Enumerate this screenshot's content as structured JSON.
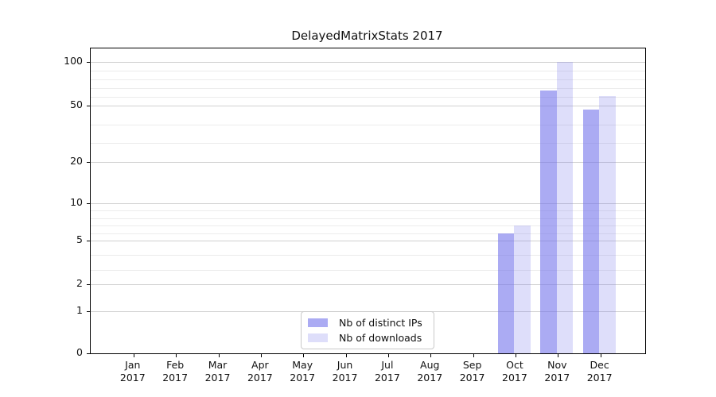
{
  "figure": {
    "background": "#ffffff",
    "spine_color": "#000000",
    "text_color": "#111111"
  },
  "chart_data": {
    "type": "bar",
    "title": "DelayedMatrixStats 2017",
    "xlabel": "",
    "ylabel": "",
    "categories": [
      "Jan",
      "Feb",
      "Mar",
      "Apr",
      "May",
      "Jun",
      "Jul",
      "Aug",
      "Sep",
      "Oct",
      "Nov",
      "Dec"
    ],
    "year_label": "2017",
    "series": [
      {
        "name": "Nb of distinct IPs",
        "color": "#abacf3",
        "color_rgba": "rgba(115,115,235,0.60)",
        "values": [
          0,
          0,
          0,
          0,
          0,
          0,
          0,
          0,
          0,
          6,
          67,
          48
        ]
      },
      {
        "name": "Nb of downloads",
        "color": "#ddddfa",
        "color_rgba": "rgba(115,115,235,0.24)",
        "values": [
          0,
          0,
          0,
          0,
          0,
          0,
          0,
          0,
          0,
          7,
          100,
          61
        ]
      }
    ],
    "yaxis": {
      "scale": "log-like (1-2-5 sequence, 0 baseline)",
      "ticks": [
        0,
        1,
        2,
        5,
        10,
        20,
        50,
        100
      ],
      "minor_ticks": [
        3,
        4,
        6,
        7,
        8,
        9,
        30,
        40,
        60,
        70,
        80,
        90
      ],
      "ylim": [
        0,
        105
      ]
    },
    "grid": {
      "major": true,
      "minor": true,
      "major_color": "#d0d0d0",
      "minor_color": "#ececec"
    },
    "legend": {
      "position": "lower center (inside plot)",
      "items": [
        "Nb of distinct IPs",
        "Nb of downloads"
      ]
    }
  }
}
